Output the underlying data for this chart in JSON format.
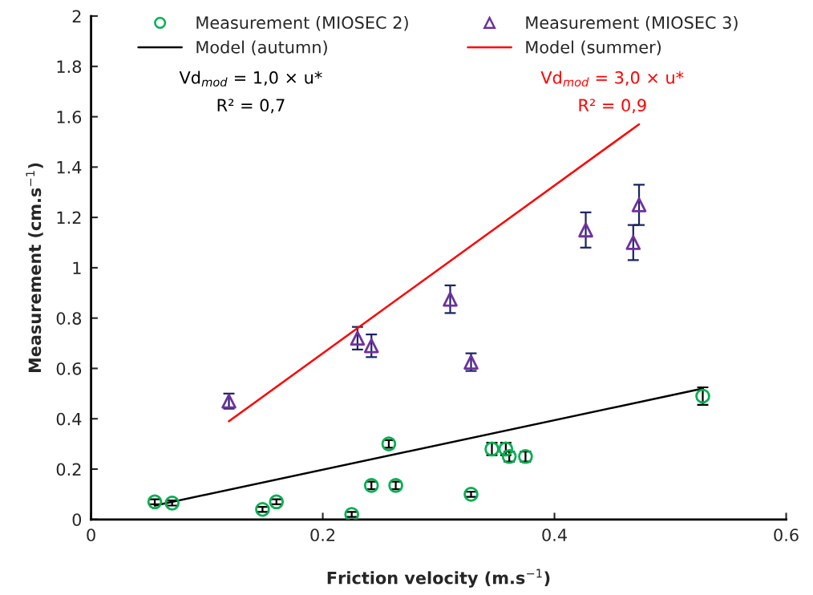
{
  "chart_data": {
    "type": "scatter",
    "xlabel": "Friction velocity (m.s$^{−1}$)",
    "ylabel": "Measurement (cm.s$^{−1}$)",
    "xlim": [
      0,
      0.6
    ],
    "xticks": [
      0,
      0.2,
      0.4,
      0.6
    ],
    "ylim": [
      0,
      2
    ],
    "yticks": [
      0,
      0.2,
      0.4,
      0.6,
      0.8,
      1,
      1.2,
      1.4,
      1.6,
      1.8,
      2
    ],
    "grid": false,
    "legend": "top",
    "series": [
      {
        "name": "Measurement (MIOSEC 2)",
        "marker": "circle",
        "color": "#00b050",
        "x": [
          0.055,
          0.07,
          0.148,
          0.16,
          0.225,
          0.242,
          0.257,
          0.263,
          0.328,
          0.346,
          0.358,
          0.361,
          0.375,
          0.528
        ],
        "values": [
          0.07,
          0.065,
          0.04,
          0.07,
          0.02,
          0.135,
          0.3,
          0.135,
          0.1,
          0.28,
          0.28,
          0.25,
          0.25,
          0.49
        ],
        "errors": [
          0.01,
          0.01,
          0.01,
          0.01,
          0.01,
          0.015,
          0.015,
          0.015,
          0.01,
          0.025,
          0.025,
          0.02,
          0.02,
          0.035
        ]
      },
      {
        "name": "Measurement (MIOSEC 3)",
        "marker": "triangle",
        "color": "#7030a0",
        "x": [
          0.119,
          0.23,
          0.242,
          0.31,
          0.328,
          0.427,
          0.468,
          0.473
        ],
        "values": [
          0.47,
          0.72,
          0.69,
          0.875,
          0.625,
          1.15,
          1.1,
          1.25
        ],
        "errors": [
          0.03,
          0.045,
          0.045,
          0.055,
          0.035,
          0.07,
          0.07,
          0.08
        ]
      },
      {
        "name": "Model (autumn)",
        "type": "line",
        "color": "#000000",
        "x": [
          0.055,
          0.528
        ],
        "values": [
          0.055,
          0.52
        ]
      },
      {
        "name": "Model (summer)",
        "type": "line",
        "color": "#ff0000",
        "x": [
          0.119,
          0.473
        ],
        "values": [
          0.39,
          1.57
        ]
      }
    ],
    "annotations": [
      "Vd$_{mod}$ = 1,0 × u*",
      "R² = 0,7",
      "Vd$_{mod}$ = 3,0 × u*",
      "R² = 0,9"
    ]
  }
}
